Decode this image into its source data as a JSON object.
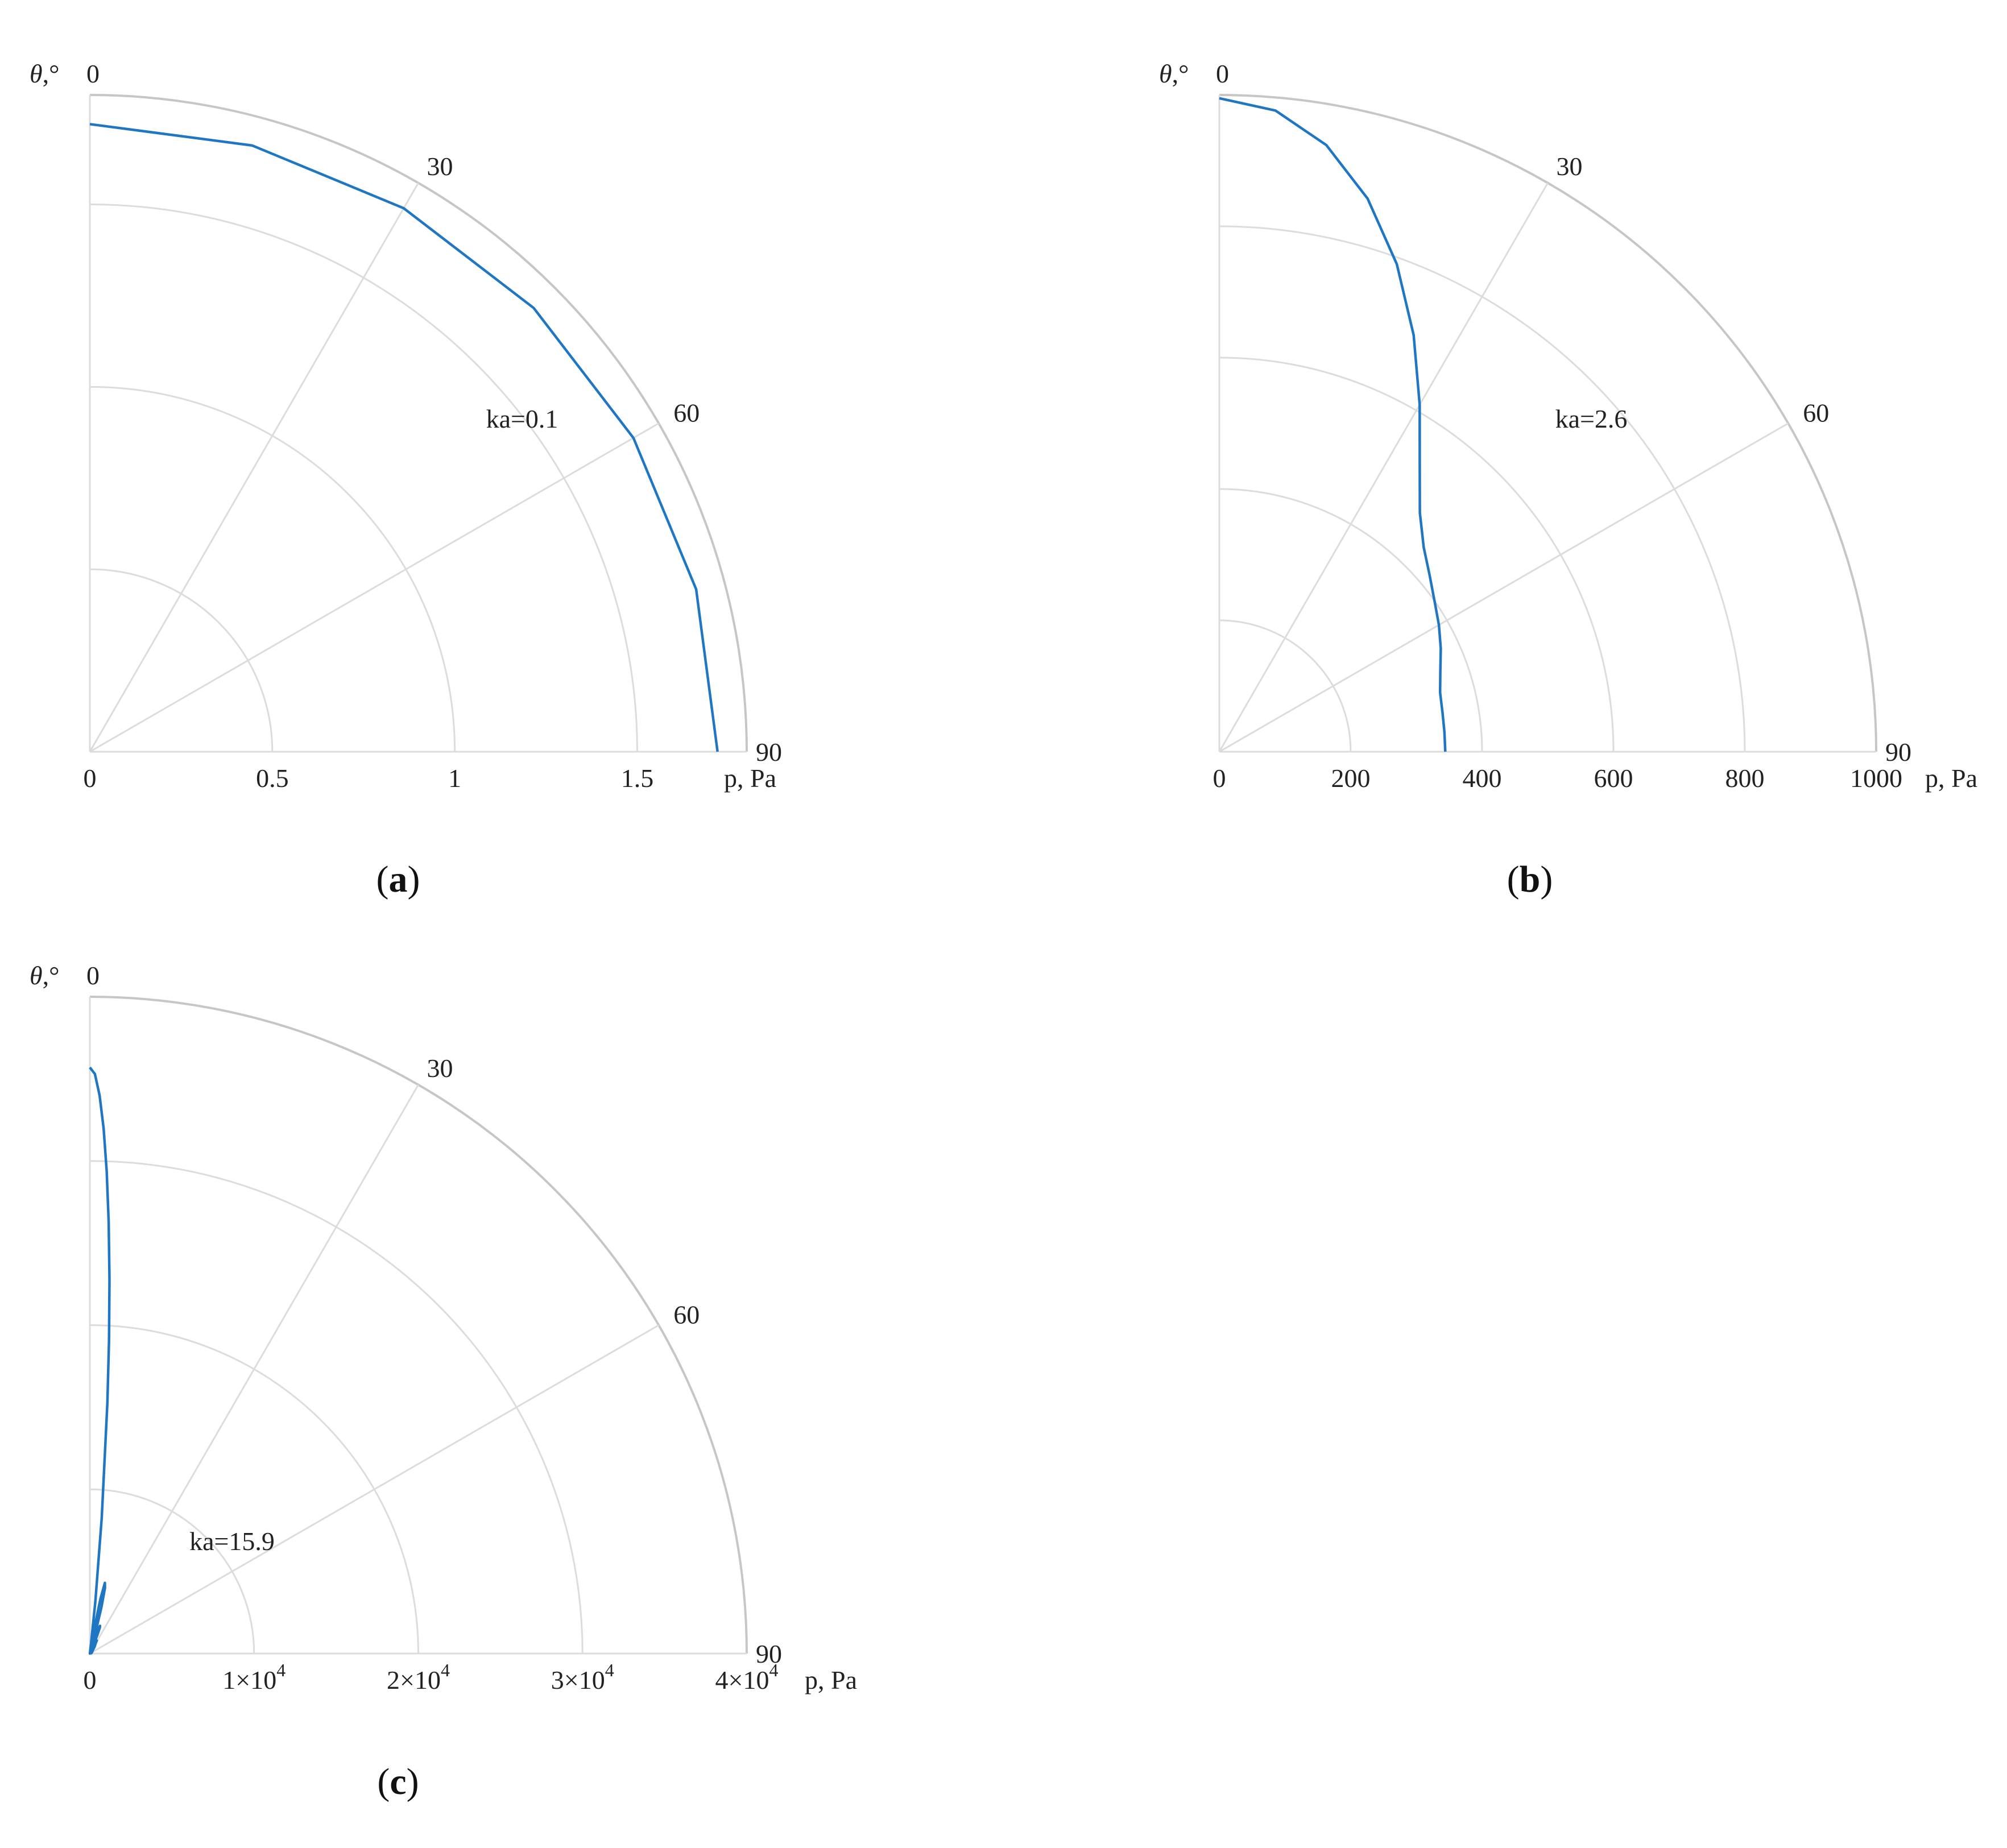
{
  "chart_data": [
    {
      "type": "polar-line",
      "panel_label_letter": "a",
      "theta_label": "θ,°",
      "r_label": "p, Pa",
      "theta_ticks": [
        "0",
        "30",
        "60",
        "90"
      ],
      "r_ticks": [
        {
          "value": 0,
          "label": "0"
        },
        {
          "value": 0.5,
          "label": "0.5"
        },
        {
          "value": 1,
          "label": "1"
        },
        {
          "value": 1.5,
          "label": "1.5"
        }
      ],
      "r_max": 1.8,
      "annotation": "ka=0.1",
      "ka": 0.1,
      "series": [
        {
          "theta_deg": [
            0,
            15,
            30,
            45,
            60,
            75,
            90
          ],
          "p": [
            1.72,
            1.72,
            1.72,
            1.72,
            1.72,
            1.72,
            1.72
          ]
        }
      ]
    },
    {
      "type": "polar-line",
      "panel_label_letter": "b",
      "theta_label": "θ,°",
      "r_label": "p, Pa",
      "theta_ticks": [
        "0",
        "30",
        "60",
        "90"
      ],
      "r_ticks": [
        {
          "value": 0,
          "label": "0"
        },
        {
          "value": 200,
          "label": "200"
        },
        {
          "value": 400,
          "label": "400"
        },
        {
          "value": 600,
          "label": "600"
        },
        {
          "value": 800,
          "label": "800"
        },
        {
          "value": 1000,
          "label": "1000"
        }
      ],
      "r_max": 1000,
      "annotation": "ka=2.6",
      "ka": 2.6,
      "series": [
        {
          "theta_deg": [
            0,
            5,
            10,
            15,
            20,
            25,
            30,
            35,
            40,
            45,
            50,
            55,
            60,
            65,
            70,
            75,
            80,
            85,
            90
          ],
          "p": [
            995,
            980,
            938,
            872,
            790,
            700,
            610,
            532,
            475,
            440,
            418,
            400,
            386,
            372,
            358,
            348,
            345,
            344,
            344
          ]
        }
      ]
    },
    {
      "type": "polar-line",
      "panel_label_letter": "c",
      "theta_label": "θ,°",
      "r_label": "p, Pa",
      "theta_ticks": [
        "0",
        "30",
        "60",
        "90"
      ],
      "r_ticks": [
        {
          "value": 0,
          "label": "0"
        },
        {
          "value": 10000,
          "base": "1×10",
          "exp": "4"
        },
        {
          "value": 20000,
          "base": "2×10",
          "exp": "4"
        },
        {
          "value": 30000,
          "base": "3×10",
          "exp": "4"
        },
        {
          "value": 40000,
          "base": "4×10",
          "exp": "4"
        }
      ],
      "r_max": 40000,
      "annotation": "ka=15.9",
      "ka": 15.9,
      "series": [
        {
          "theta_deg": [
            0,
            0.5,
            1,
            1.5,
            2,
            2.5,
            3,
            3.5,
            4,
            5,
            6,
            7,
            8,
            8.6,
            9,
            10,
            11,
            12,
            13,
            14,
            15,
            16,
            17,
            18,
            19,
            20,
            21,
            22,
            23,
            24,
            25,
            26,
            28,
            30,
            35,
            40,
            50,
            60,
            70,
            80,
            90
          ],
          "p": [
            35700,
            35300,
            34000,
            32000,
            29400,
            26300,
            22800,
            19100,
            15300,
            8300,
            3200,
            600,
            60,
            0,
            200,
            1500,
            3400,
            4400,
            4100,
            2900,
            1300,
            200,
            100,
            700,
            1500,
            1800,
            1700,
            1200,
            500,
            100,
            300,
            700,
            900,
            700,
            500,
            300,
            200,
            150,
            100,
            80,
            50
          ]
        }
      ]
    }
  ]
}
